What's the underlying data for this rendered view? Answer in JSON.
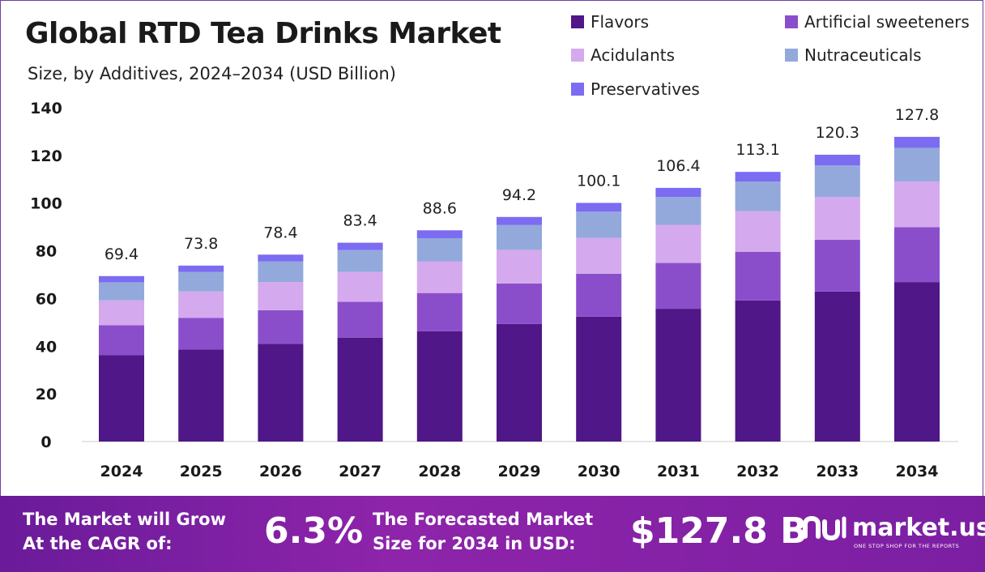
{
  "header": {
    "title": "Global RTD Tea Drinks Market",
    "subtitle": "Size, by Additives, 2024–2034 (USD Billion)"
  },
  "chart_data": {
    "type": "bar",
    "stacked": true,
    "categories": [
      "2024",
      "2025",
      "2026",
      "2027",
      "2028",
      "2029",
      "2030",
      "2031",
      "2032",
      "2033",
      "2034"
    ],
    "series": [
      {
        "name": "Flavors",
        "color": "#4f1787",
        "values": [
          36.3,
          38.6,
          41.0,
          43.6,
          46.3,
          49.3,
          52.4,
          55.7,
          59.2,
          62.9,
          66.9
        ]
      },
      {
        "name": "Artificial sweeteners",
        "color": "#8b4ecb",
        "values": [
          12.5,
          13.3,
          14.1,
          15.0,
          16.0,
          17.0,
          18.0,
          19.2,
          20.4,
          21.7,
          23.0
        ]
      },
      {
        "name": "Acidulants",
        "color": "#d4a9ee",
        "values": [
          10.4,
          11.1,
          11.8,
          12.5,
          13.3,
          14.1,
          15.0,
          16.0,
          17.0,
          18.0,
          19.2
        ]
      },
      {
        "name": "Nutraceuticals",
        "color": "#93a9db",
        "values": [
          7.6,
          8.1,
          8.6,
          9.2,
          9.7,
          10.4,
          11.0,
          11.7,
          12.4,
          13.2,
          14.1
        ]
      },
      {
        "name": "Preservatives",
        "color": "#7b6cf2",
        "values": [
          2.6,
          2.7,
          2.9,
          3.1,
          3.3,
          3.4,
          3.7,
          3.8,
          4.1,
          4.5,
          4.6
        ]
      }
    ],
    "totals": [
      "69.4",
      "73.8",
      "78.4",
      "83.4",
      "88.6",
      "94.2",
      "100.1",
      "106.4",
      "113.1",
      "120.3",
      "127.8"
    ],
    "ylim": [
      0,
      140
    ],
    "yticks": [
      0,
      20,
      40,
      60,
      80,
      100,
      120,
      140
    ],
    "grid": false,
    "legend_position": "top-right"
  },
  "footer": {
    "cagr_label_line1": "The Market will Grow",
    "cagr_label_line2": "At the CAGR of:",
    "cagr_value": "6.3%",
    "forecast_label_line1": "The Forecasted Market",
    "forecast_label_line2": "Size for 2034 in USD:",
    "forecast_value": "$127.8 B",
    "brand_name": "market.us",
    "brand_tagline": "ONE STOP SHOP FOR THE REPORTS",
    "logo_icon": "market-us-logo-icon"
  }
}
